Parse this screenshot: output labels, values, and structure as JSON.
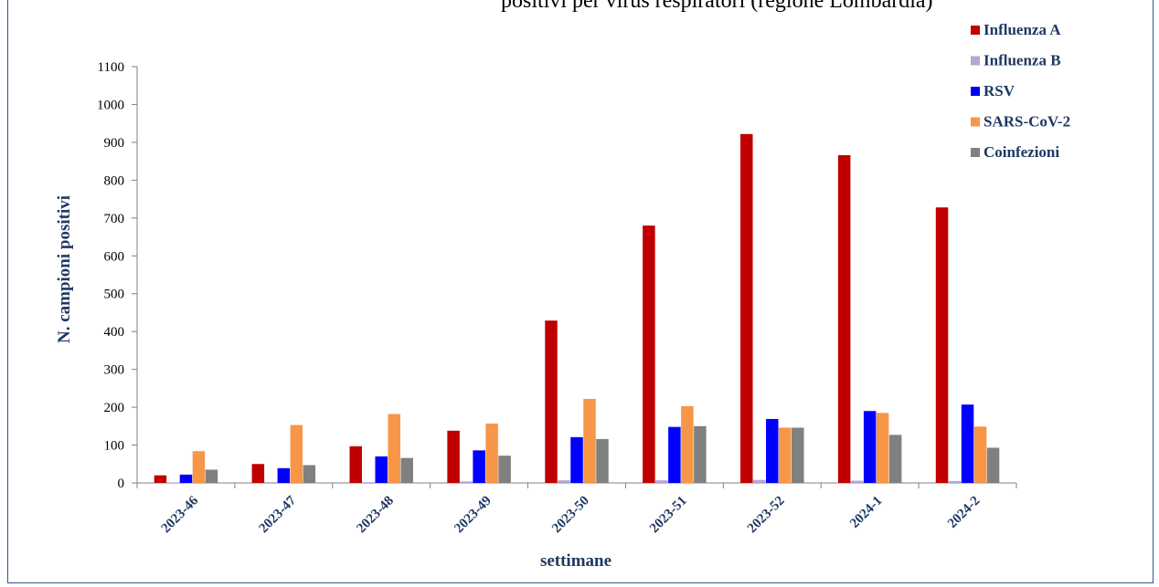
{
  "header": {
    "title": "positivi per virus respiratori (regione Lombardia)"
  },
  "chart_data": {
    "type": "bar",
    "title": "positivi per virus respiratori (regione Lombardia)",
    "xlabel": "settimane",
    "ylabel": "N. campioni positivi",
    "ylim": [
      0,
      1100
    ],
    "yticks": [
      0,
      100,
      200,
      300,
      400,
      500,
      600,
      700,
      800,
      900,
      1000,
      1100
    ],
    "grid": false,
    "legend_position": "top-right",
    "categories": [
      "2023-46",
      "2023-47",
      "2023-48",
      "2023-49",
      "2023-50",
      "2023-51",
      "2023-52",
      "2024-1",
      "2024-2"
    ],
    "series": [
      {
        "name": "Influenza A",
        "color": "#c00000",
        "values": [
          20,
          50,
          97,
          138,
          429,
          680,
          922,
          866,
          728
        ]
      },
      {
        "name": "Influenza B",
        "color": "#b4a7d6",
        "values": [
          1,
          2,
          2,
          4,
          7,
          7,
          8,
          6,
          5
        ]
      },
      {
        "name": "RSV",
        "color": "#0000ff",
        "values": [
          22,
          39,
          70,
          86,
          121,
          148,
          169,
          190,
          207
        ]
      },
      {
        "name": "SARS-CoV-2",
        "color": "#f79646",
        "values": [
          84,
          153,
          182,
          157,
          222,
          203,
          146,
          185,
          149
        ]
      },
      {
        "name": "Coinfezioni",
        "color": "#808080",
        "values": [
          35,
          47,
          66,
          72,
          116,
          150,
          146,
          127,
          93
        ]
      }
    ]
  }
}
